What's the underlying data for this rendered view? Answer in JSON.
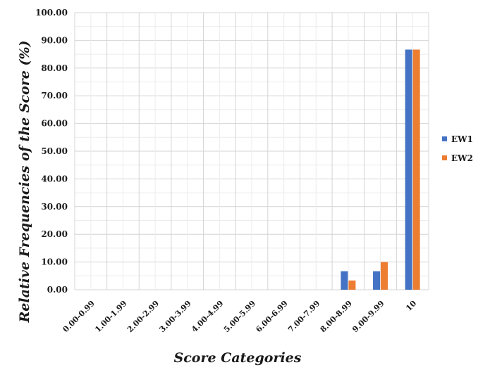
{
  "chart_data": {
    "type": "bar",
    "title": "",
    "xlabel": "Score Categories",
    "ylabel": "Relative Frequencies of the Score (%)",
    "categories": [
      "0.00-0.99",
      "1.00-1.99",
      "2.00-2.99",
      "3.00-3.99",
      "4.00-4.99",
      "5.00-5.99",
      "6.00-6.99",
      "7.00-7.99",
      "8.00-8.99",
      "9.00-9.99",
      "10"
    ],
    "series": [
      {
        "name": "EW1",
        "color": "#4472C4",
        "values": [
          0,
          0,
          0,
          0,
          0,
          0,
          0,
          0,
          6.67,
          6.67,
          86.67
        ]
      },
      {
        "name": "EW2",
        "color": "#ED7D31",
        "values": [
          0,
          0,
          0,
          0,
          0,
          0,
          0,
          0,
          3.33,
          10.0,
          86.67
        ]
      }
    ],
    "ylim": [
      0,
      100
    ],
    "yticks": [
      "0.00",
      "10.00",
      "20.00",
      "30.00",
      "40.00",
      "50.00",
      "60.00",
      "70.00",
      "80.00",
      "90.00",
      "100.00"
    ],
    "grid": true,
    "legend_position": "right"
  }
}
